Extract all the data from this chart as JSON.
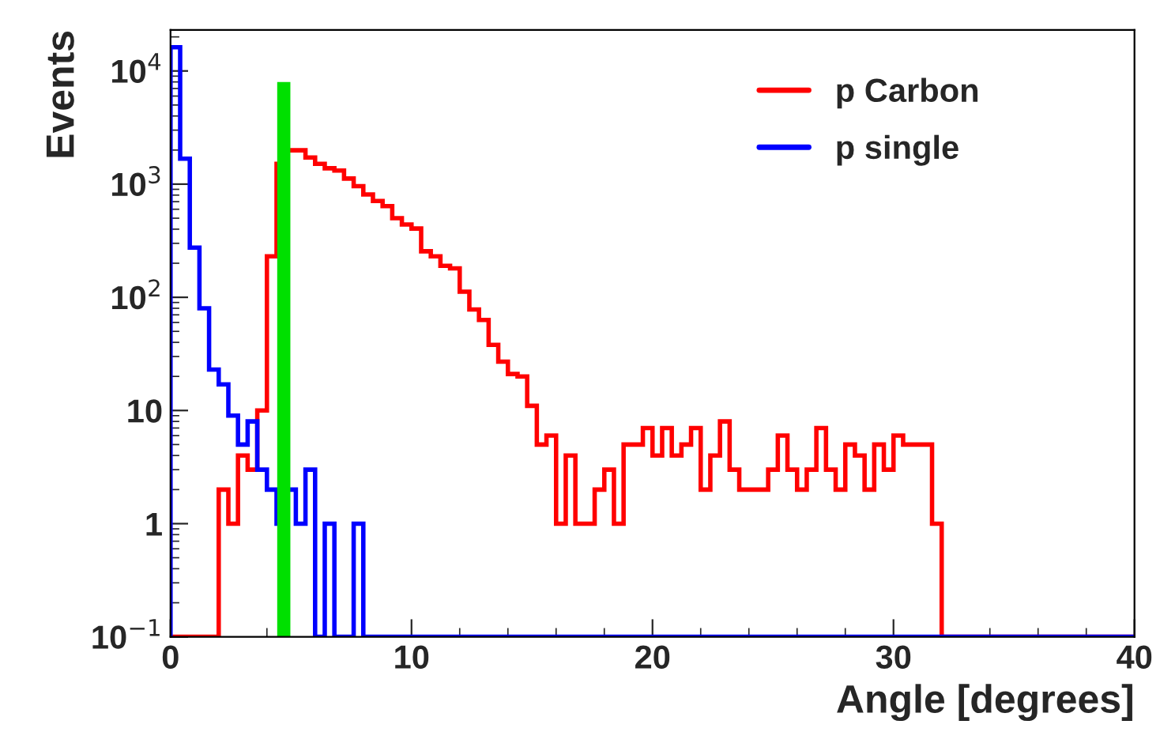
{
  "chart_data": {
    "type": "histogram",
    "xlabel": "Angle [degrees]",
    "ylabel": "Events",
    "bins": [
      0,
      0.4,
      0.8,
      1.2,
      1.6,
      2,
      2.4,
      2.8,
      3.2,
      3.6,
      4,
      4.4,
      4.8,
      5.2,
      5.6,
      6,
      6.4,
      6.8,
      7.2,
      7.6,
      8,
      8.4,
      8.8,
      9.2,
      9.6,
      10,
      10.4,
      10.8,
      11.2,
      11.6,
      12,
      12.4,
      12.8,
      13.2,
      13.6,
      14,
      14.4,
      14.8,
      15.2,
      15.6,
      16,
      16.4,
      16.8,
      17.2,
      17.6,
      18,
      18.4,
      18.8,
      19.2,
      19.6,
      20,
      20.4,
      20.8,
      21.2,
      21.6,
      22,
      22.4,
      22.8,
      23.2,
      23.6,
      24,
      24.4,
      24.8,
      25.2,
      25.6,
      26,
      26.4,
      26.8,
      27.2,
      27.6,
      28,
      28.4,
      28.8,
      29.2,
      29.6,
      30,
      30.4,
      30.8,
      31.2,
      31.6,
      32,
      32.4,
      32.8,
      33.2,
      33.6,
      34,
      34.4,
      34.8,
      35.2,
      35.6,
      36,
      36.4,
      36.8,
      37.2,
      37.6,
      38,
      38.4,
      38.8,
      39.2,
      39.6,
      40
    ],
    "series": [
      {
        "name": "p Carbon",
        "color": "#ff0000",
        "values": [
          null,
          null,
          null,
          null,
          null,
          2,
          1,
          4,
          3,
          10,
          230,
          1510,
          1990,
          1990,
          1720,
          1510,
          1380,
          1320,
          1120,
          960,
          810,
          710,
          640,
          500,
          440,
          405,
          255,
          230,
          190,
          180,
          112,
          78,
          63,
          38,
          27,
          21,
          20,
          11,
          5,
          6,
          1,
          4,
          1,
          1,
          2,
          3,
          1,
          5,
          5,
          7,
          4,
          7,
          4,
          5,
          7,
          2,
          4,
          8,
          3,
          2,
          2,
          2,
          3,
          6,
          3,
          2,
          3,
          7,
          3,
          2,
          5,
          4,
          2,
          5,
          3,
          6,
          5,
          5,
          5,
          1,
          null,
          null,
          null,
          null,
          null,
          null,
          null,
          null,
          null,
          null,
          null,
          null,
          null,
          null,
          null,
          null,
          null,
          null,
          null,
          null
        ]
      },
      {
        "name": "p single",
        "color": "#0000ff",
        "values": [
          16200,
          1680,
          275,
          80,
          23,
          17,
          9,
          5,
          8,
          3,
          2,
          1,
          2,
          1,
          3,
          null,
          1,
          null,
          null,
          1,
          null,
          null,
          null,
          null,
          null,
          null,
          null,
          null,
          null,
          null,
          null,
          null,
          null,
          null,
          null,
          null,
          null,
          null,
          null,
          null,
          null,
          null,
          null,
          null,
          null,
          null,
          null,
          null,
          null,
          null,
          null,
          null,
          null,
          null,
          null,
          null,
          null,
          null,
          null,
          null,
          null,
          null,
          null,
          null,
          null,
          null,
          null,
          null,
          null,
          null,
          null,
          null,
          null,
          null,
          null,
          null,
          null,
          null,
          null,
          null,
          null,
          null,
          null,
          null,
          null,
          null,
          null,
          null,
          null,
          null,
          null,
          null,
          null,
          null,
          null,
          null,
          null,
          null,
          null,
          null
        ]
      },
      {
        "type": "line",
        "color": "#00e000",
        "x": [
          4.7,
          4.7
        ],
        "values": [
          0.1,
          8000
        ]
      }
    ],
    "log": "y",
    "xlim": [
      0,
      40
    ],
    "xticks": [
      0,
      10,
      20,
      30,
      40
    ],
    "ylim": [
      0.1,
      23000
    ],
    "yticks": [
      {
        "value": 0.1,
        "label": "10$^{−1}$"
      },
      1,
      10,
      {
        "value": 100,
        "label": "10$^{2}$"
      },
      {
        "value": 1000,
        "label": "10$^{3}$"
      },
      {
        "value": 10000,
        "label": "10$^{4}$"
      }
    ],
    "legend": "top right",
    "grid": false
  }
}
